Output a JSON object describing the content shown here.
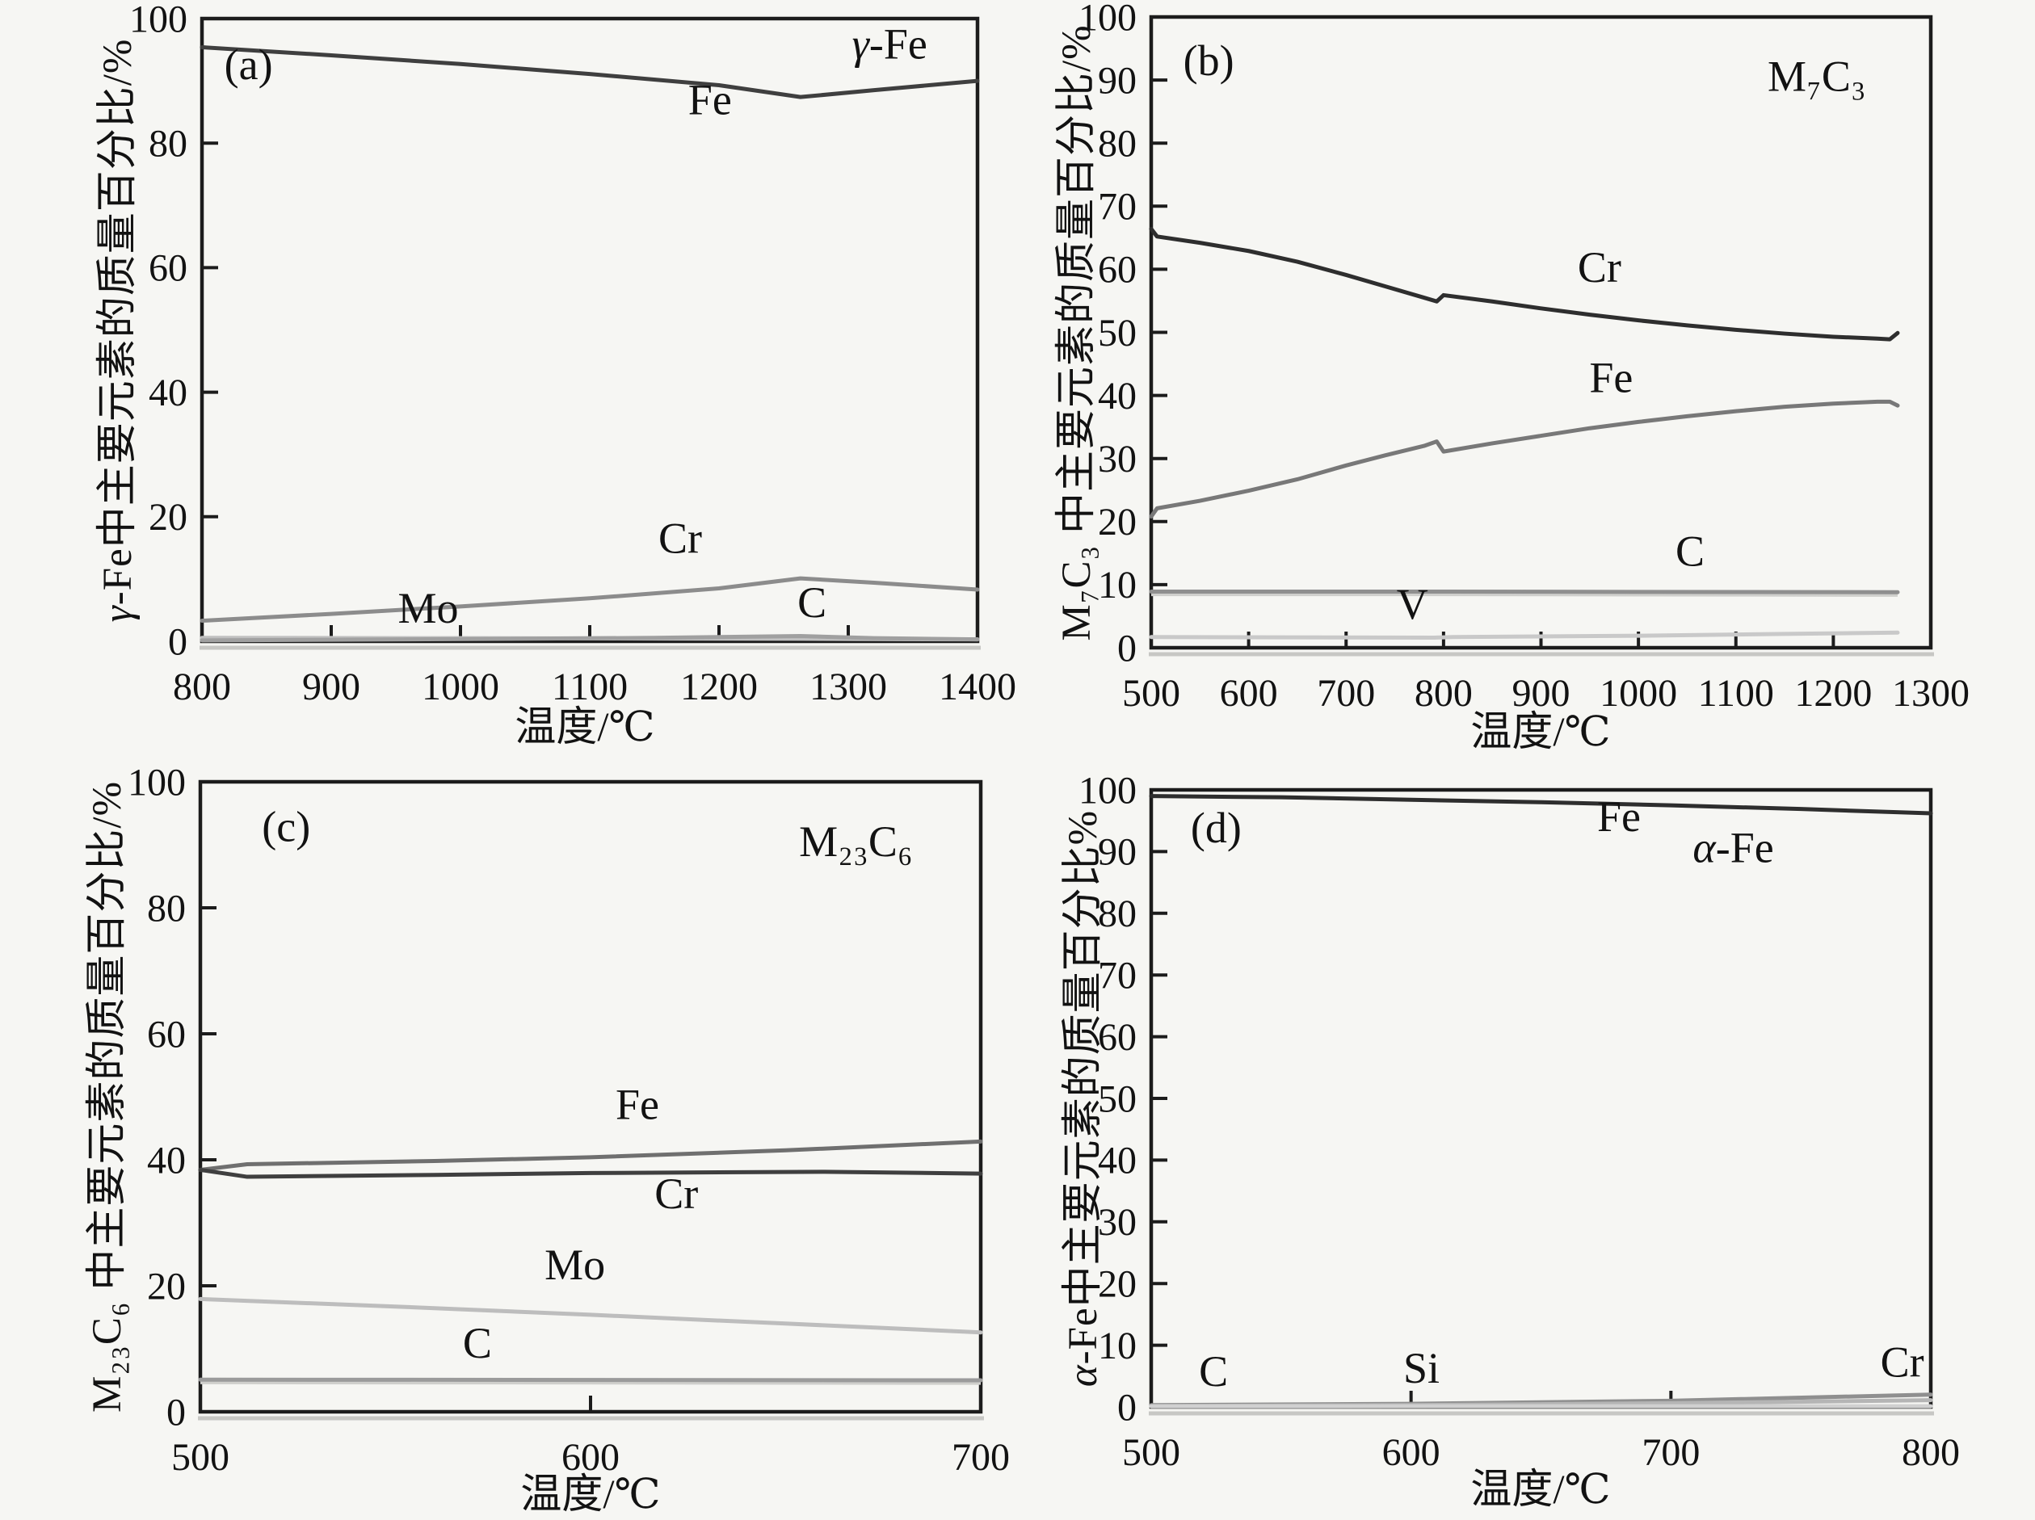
{
  "style": {
    "background": "#f6f6f3",
    "axis_color": "#1c1c1c",
    "text_color": "#121212",
    "axis_shadow_color": "#c7c7c4"
  },
  "chart_data": [
    {
      "type": "line",
      "panel": "a",
      "corner_label": {
        "text": "(a)",
        "x": 836,
        "y": 90.3
      },
      "phase_label": {
        "text": "γ-Fe",
        "x": 1332,
        "y": 93.6
      },
      "xlabel": "温度/℃",
      "ylabel": "γ-Fe中主要元素的质量百分比/%",
      "xlim": [
        800,
        1400
      ],
      "ylim": [
        0,
        100
      ],
      "xticks": [
        800,
        900,
        1000,
        1100,
        1200,
        1300,
        1400
      ],
      "yticks": [
        0,
        20,
        40,
        60,
        80,
        100
      ],
      "grid": false,
      "series": [
        {
          "name": "Fe",
          "color": "#3f3f3f",
          "points": [
            [
              800,
              95.4
            ],
            [
              900,
              94.1
            ],
            [
              1000,
              92.7
            ],
            [
              1100,
              91.1
            ],
            [
              1200,
              89.3
            ],
            [
              1263,
              87.4
            ],
            [
              1320,
              88.5
            ],
            [
              1400,
              90.0
            ]
          ]
        },
        {
          "name": "Cr",
          "color": "#8c8c8c",
          "points": [
            [
              800,
              3.3
            ],
            [
              900,
              4.4
            ],
            [
              1000,
              5.6
            ],
            [
              1100,
              6.9
            ],
            [
              1200,
              8.5
            ],
            [
              1263,
              10.1
            ],
            [
              1320,
              9.4
            ],
            [
              1400,
              8.3
            ]
          ]
        },
        {
          "name": "Mo",
          "color": "#c0c0c0",
          "points": [
            [
              800,
              0.55
            ],
            [
              1000,
              0.5
            ],
            [
              1263,
              0.4
            ],
            [
              1400,
              0.3
            ]
          ]
        },
        {
          "name": "C",
          "color": "#a0a0a0",
          "points": [
            [
              800,
              0.15
            ],
            [
              1000,
              0.35
            ],
            [
              1150,
              0.55
            ],
            [
              1263,
              0.85
            ],
            [
              1320,
              0.5
            ],
            [
              1400,
              0.3
            ]
          ]
        }
      ],
      "annotations": [
        {
          "text": "Fe",
          "x": 1193,
          "y": 84.6
        },
        {
          "text": "Cr",
          "x": 1170,
          "y": 14.2
        },
        {
          "text": "Mo",
          "x": 975,
          "y": 3.0
        },
        {
          "text": "C",
          "x": 1272,
          "y": 3.9
        }
      ]
    },
    {
      "type": "line",
      "panel": "b",
      "corner_label": {
        "text": "(b)",
        "x": 559,
        "y": 90.8
      },
      "phase_label": {
        "text": "M₇C₃",
        "x": 1183,
        "y": 88.3
      },
      "xlabel": "温度/℃",
      "ylabel": "M₇C₃ 中主要元素的质量百分比/%",
      "xlim": [
        500,
        1300
      ],
      "ylim": [
        0,
        100
      ],
      "xticks": [
        500,
        600,
        700,
        800,
        900,
        1000,
        1100,
        1200,
        1300
      ],
      "yticks": [
        0,
        10,
        20,
        30,
        40,
        50,
        60,
        70,
        80,
        90,
        100
      ],
      "grid": false,
      "series": [
        {
          "name": "Cr",
          "color": "#2e2e2e",
          "points": [
            [
              500,
              66.4
            ],
            [
              506,
              65.2
            ],
            [
              550,
              64.2
            ],
            [
              600,
              62.9
            ],
            [
              650,
              61.2
            ],
            [
              700,
              59.1
            ],
            [
              740,
              57.3
            ],
            [
              780,
              55.5
            ],
            [
              793,
              54.9
            ],
            [
              800,
              55.9
            ],
            [
              850,
              54.9
            ],
            [
              900,
              53.8
            ],
            [
              950,
              52.8
            ],
            [
              1000,
              51.9
            ],
            [
              1050,
              51.1
            ],
            [
              1100,
              50.4
            ],
            [
              1150,
              49.8
            ],
            [
              1200,
              49.3
            ],
            [
              1245,
              49.0
            ],
            [
              1258,
              48.9
            ],
            [
              1266,
              49.9
            ]
          ]
        },
        {
          "name": "Fe",
          "color": "#787878",
          "points": [
            [
              500,
              20.8
            ],
            [
              506,
              22.1
            ],
            [
              550,
              23.3
            ],
            [
              600,
              24.9
            ],
            [
              650,
              26.7
            ],
            [
              700,
              28.9
            ],
            [
              740,
              30.5
            ],
            [
              780,
              32.0
            ],
            [
              793,
              32.7
            ],
            [
              800,
              31.1
            ],
            [
              850,
              32.4
            ],
            [
              900,
              33.6
            ],
            [
              950,
              34.8
            ],
            [
              1000,
              35.8
            ],
            [
              1050,
              36.7
            ],
            [
              1100,
              37.5
            ],
            [
              1150,
              38.2
            ],
            [
              1200,
              38.7
            ],
            [
              1245,
              39.0
            ],
            [
              1258,
              39.0
            ],
            [
              1266,
              38.4
            ]
          ]
        },
        {
          "name": "C",
          "color": "#8f8f8f",
          "echo": 0.5,
          "points": [
            [
              500,
              8.9
            ],
            [
              800,
              8.9
            ],
            [
              1266,
              8.8
            ]
          ]
        },
        {
          "name": "V",
          "color": "#c9c9c9",
          "points": [
            [
              500,
              1.7
            ],
            [
              790,
              1.6
            ],
            [
              810,
              1.7
            ],
            [
              1000,
              1.9
            ],
            [
              1150,
              2.2
            ],
            [
              1266,
              2.4
            ]
          ]
        }
      ],
      "annotations": [
        {
          "text": "Cr",
          "x": 960,
          "y": 58.0
        },
        {
          "text": "Fe",
          "x": 972,
          "y": 40.5
        },
        {
          "text": "C",
          "x": 1053,
          "y": 13.0
        },
        {
          "text": "V",
          "x": 768,
          "y": 4.6
        }
      ]
    },
    {
      "type": "line",
      "panel": "c",
      "corner_label": {
        "text": "(c)",
        "x": 522,
        "y": 90.6
      },
      "phase_label": {
        "text": "M₂₃C₆",
        "x": 668,
        "y": 88.2
      },
      "xlabel": "温度/℃",
      "ylabel": "M₂₃C₆ 中主要元素的质量百分比/%",
      "xlim": [
        500,
        700
      ],
      "ylim": [
        0,
        100
      ],
      "xticks": [
        500,
        600,
        700
      ],
      "yticks": [
        0,
        20,
        40,
        60,
        80,
        100
      ],
      "grid": false,
      "series": [
        {
          "name": "Fe",
          "color": "#6f6f6f",
          "points": [
            [
              500,
              38.4
            ],
            [
              512,
              39.3
            ],
            [
              560,
              39.8
            ],
            [
              600,
              40.4
            ],
            [
              650,
              41.5
            ],
            [
              700,
              42.9
            ]
          ]
        },
        {
          "name": "Cr",
          "color": "#3f3f3f",
          "points": [
            [
              500,
              38.4
            ],
            [
              512,
              37.3
            ],
            [
              560,
              37.6
            ],
            [
              600,
              37.9
            ],
            [
              660,
              38.1
            ],
            [
              700,
              37.8
            ]
          ]
        },
        {
          "name": "Mo",
          "color": "#bdbdbd",
          "points": [
            [
              500,
              17.9
            ],
            [
              550,
              16.7
            ],
            [
              600,
              15.4
            ],
            [
              650,
              14.0
            ],
            [
              700,
              12.6
            ]
          ]
        },
        {
          "name": "C",
          "color": "#9b9b9b",
          "echo": 0.5,
          "points": [
            [
              500,
              5.1
            ],
            [
              700,
              5.0
            ]
          ]
        }
      ],
      "annotations": [
        {
          "text": "Fe",
          "x": 612,
          "y": 46.5
        },
        {
          "text": "Cr",
          "x": 622,
          "y": 32.3
        },
        {
          "text": "Mo",
          "x": 596,
          "y": 21.0
        },
        {
          "text": "C",
          "x": 571,
          "y": 8.6
        }
      ]
    },
    {
      "type": "line",
      "panel": "d",
      "corner_label": {
        "text": "(d)",
        "x": 525,
        "y": 91.5
      },
      "phase_label": {
        "text": "α-Fe",
        "x": 724,
        "y": 88.3
      },
      "xlabel": "温度/℃",
      "ylabel": "α-Fe中主要元素的质量百分比%",
      "xlim": [
        500,
        800
      ],
      "ylim": [
        0,
        100
      ],
      "xticks": [
        500,
        600,
        700,
        800
      ],
      "yticks": [
        0,
        10,
        20,
        30,
        40,
        50,
        60,
        70,
        80,
        90,
        100
      ],
      "grid": false,
      "series": [
        {
          "name": "Fe",
          "color": "#2e2e2e",
          "points": [
            [
              500,
              99.0
            ],
            [
              550,
              98.8
            ],
            [
              600,
              98.4
            ],
            [
              650,
              98.0
            ],
            [
              700,
              97.5
            ],
            [
              750,
              96.9
            ],
            [
              800,
              96.2
            ]
          ]
        },
        {
          "name": "Cr",
          "color": "#8f8f8f",
          "points": [
            [
              500,
              0.3
            ],
            [
              600,
              0.5
            ],
            [
              700,
              1.0
            ],
            [
              800,
              2.0
            ]
          ]
        },
        {
          "name": "Si",
          "color": "#b5b5b5",
          "points": [
            [
              500,
              0.15
            ],
            [
              600,
              0.3
            ],
            [
              700,
              0.6
            ],
            [
              800,
              1.1
            ]
          ]
        },
        {
          "name": "C",
          "color": "#d0d0d0",
          "points": [
            [
              500,
              0.1
            ],
            [
              800,
              0.12
            ]
          ]
        }
      ],
      "annotations": [
        {
          "text": "Fe",
          "x": 680,
          "y": 93.3
        },
        {
          "text": "C",
          "x": 524,
          "y": 3.4
        },
        {
          "text": "Si",
          "x": 604,
          "y": 3.9
        },
        {
          "text": "Cr",
          "x": 789,
          "y": 4.9
        }
      ]
    }
  ]
}
